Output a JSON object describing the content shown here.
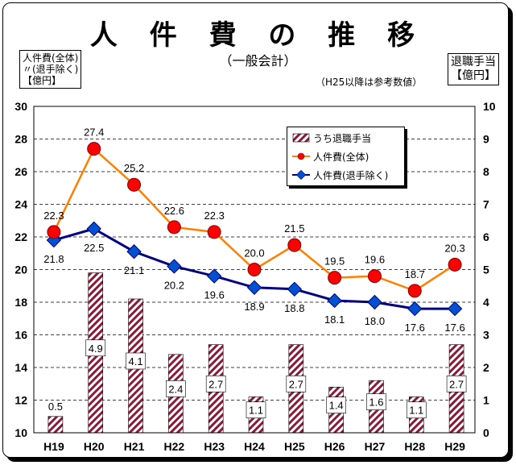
{
  "title": "人 件 費 の 推 移",
  "subtitle": "（一般会計）",
  "note": "（H25以降は参考数値）",
  "left_unit": [
    "人件費(全体)",
    "〃(退手除く)",
    "【億円】"
  ],
  "right_unit": [
    "退職手当",
    "【億円】"
  ],
  "colors": {
    "bar_hatch": "#8b1a3a",
    "line_total": "#ff8000",
    "marker_total": "#ff0000",
    "line_excl": "#000080",
    "marker_excl": "#0050d0"
  },
  "chart_data": {
    "type": "bar-line-combo",
    "categories": [
      "H19",
      "H20",
      "H21",
      "H22",
      "H23",
      "H24",
      "H25",
      "H26",
      "H27",
      "H28",
      "H29"
    ],
    "left_axis": {
      "ylim": [
        10,
        30
      ],
      "ticks": [
        "10",
        "12",
        "14",
        "16",
        "18",
        "20",
        "22",
        "24",
        "26",
        "28",
        "30"
      ]
    },
    "right_axis": {
      "ylim": [
        0,
        10
      ],
      "ticks": [
        "0",
        "1",
        "2",
        "3",
        "4",
        "5",
        "6",
        "7",
        "8",
        "9",
        "10"
      ]
    },
    "series": [
      {
        "name": "うち退職手当",
        "type": "bar",
        "axis": "right",
        "values": [
          0.5,
          4.9,
          4.1,
          2.4,
          2.7,
          1.1,
          2.7,
          1.4,
          1.6,
          1.1,
          2.7
        ],
        "labels": [
          "0.5",
          "4.9",
          "4.1",
          "2.4",
          "2.7",
          "1.1",
          "2.7",
          "1.4",
          "1.6",
          "1.1",
          "2.7"
        ]
      },
      {
        "name": "人件費(全体)",
        "type": "line",
        "axis": "left",
        "values": [
          22.3,
          27.4,
          25.2,
          22.6,
          22.3,
          20.0,
          21.5,
          19.5,
          19.6,
          18.7,
          20.3
        ],
        "labels": [
          "22.3",
          "27.4",
          "25.2",
          "22.6",
          "22.3",
          "20.0",
          "21.5",
          "19.5",
          "19.6",
          "18.7",
          "20.3"
        ]
      },
      {
        "name": "人件費(退手除く)",
        "type": "line",
        "axis": "left",
        "values": [
          21.8,
          22.5,
          21.1,
          20.2,
          19.6,
          18.9,
          18.8,
          18.1,
          18.0,
          17.6,
          17.6
        ],
        "labels": [
          "21.8",
          "22.5",
          "21.1",
          "20.2",
          "19.6",
          "18.9",
          "18.8",
          "18.1",
          "18.0",
          "17.6",
          "17.6"
        ]
      }
    ],
    "grid": "horizontal-dashed",
    "legend_position": "top-right"
  }
}
